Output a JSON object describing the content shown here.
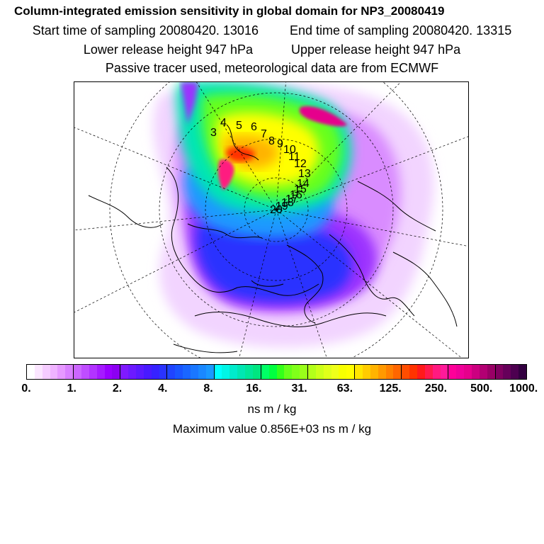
{
  "header": {
    "title": "Column-integrated emission sensitivity in global domain for NP3_20080419",
    "start_time": "Start time of sampling 20080420. 13016",
    "end_time": "End time of sampling 20080420. 13315",
    "lower_height": "Lower release height  947 hPa",
    "upper_height": "Upper release height  947 hPa",
    "tracer_info": "Passive tracer used, meteorological data are from ECMWF"
  },
  "map": {
    "trajectory_labels": [
      "3",
      "4",
      "5",
      "6",
      "7",
      "8",
      "9",
      "10",
      "11",
      "12",
      "13",
      "14",
      "15",
      "16",
      "17",
      "18",
      "19",
      "20"
    ]
  },
  "colorbar": {
    "tick_labels": [
      "0.",
      "1.",
      "2.",
      "4.",
      "8.",
      "16.",
      "31.",
      "63.",
      "125.",
      "250.",
      "500.",
      "1000."
    ],
    "colors": [
      "#ffffff",
      "#fbe6ff",
      "#f5ccff",
      "#efb3ff",
      "#e699ff",
      "#d980ff",
      "#cc66ff",
      "#bf4dff",
      "#b233ff",
      "#a51aff",
      "#9900ff",
      "#8c00f2",
      "#7f1aff",
      "#6c1aff",
      "#5a1aff",
      "#481aff",
      "#3622ff",
      "#2a33ff",
      "#1f44ff",
      "#1a55ff",
      "#1a66ff",
      "#1a77ff",
      "#1a88ff",
      "#1a99ff",
      "#00ffff",
      "#00f5e6",
      "#00ebcc",
      "#00e6b3",
      "#00e699",
      "#00e680",
      "#00ff66",
      "#00ff40",
      "#33ff1a",
      "#66ff1a",
      "#80ff1a",
      "#99ff1a",
      "#b3ff1a",
      "#ccff1a",
      "#e0ff1a",
      "#eeff1a",
      "#f7ff00",
      "#ffff00",
      "#ffe600",
      "#ffcc00",
      "#ffb300",
      "#ff9900",
      "#ff8000",
      "#ff6600",
      "#ff4d00",
      "#ff3300",
      "#ff1a1a",
      "#ff1a4d",
      "#ff1a80",
      "#ff1a99",
      "#ff0099",
      "#f00099",
      "#e6008c",
      "#cc0080",
      "#b30073",
      "#990066",
      "#800060",
      "#66005a",
      "#4d0050",
      "#330040"
    ],
    "units": "ns m / kg",
    "max_value": "Maximum value  0.856E+03 ns m / kg"
  }
}
